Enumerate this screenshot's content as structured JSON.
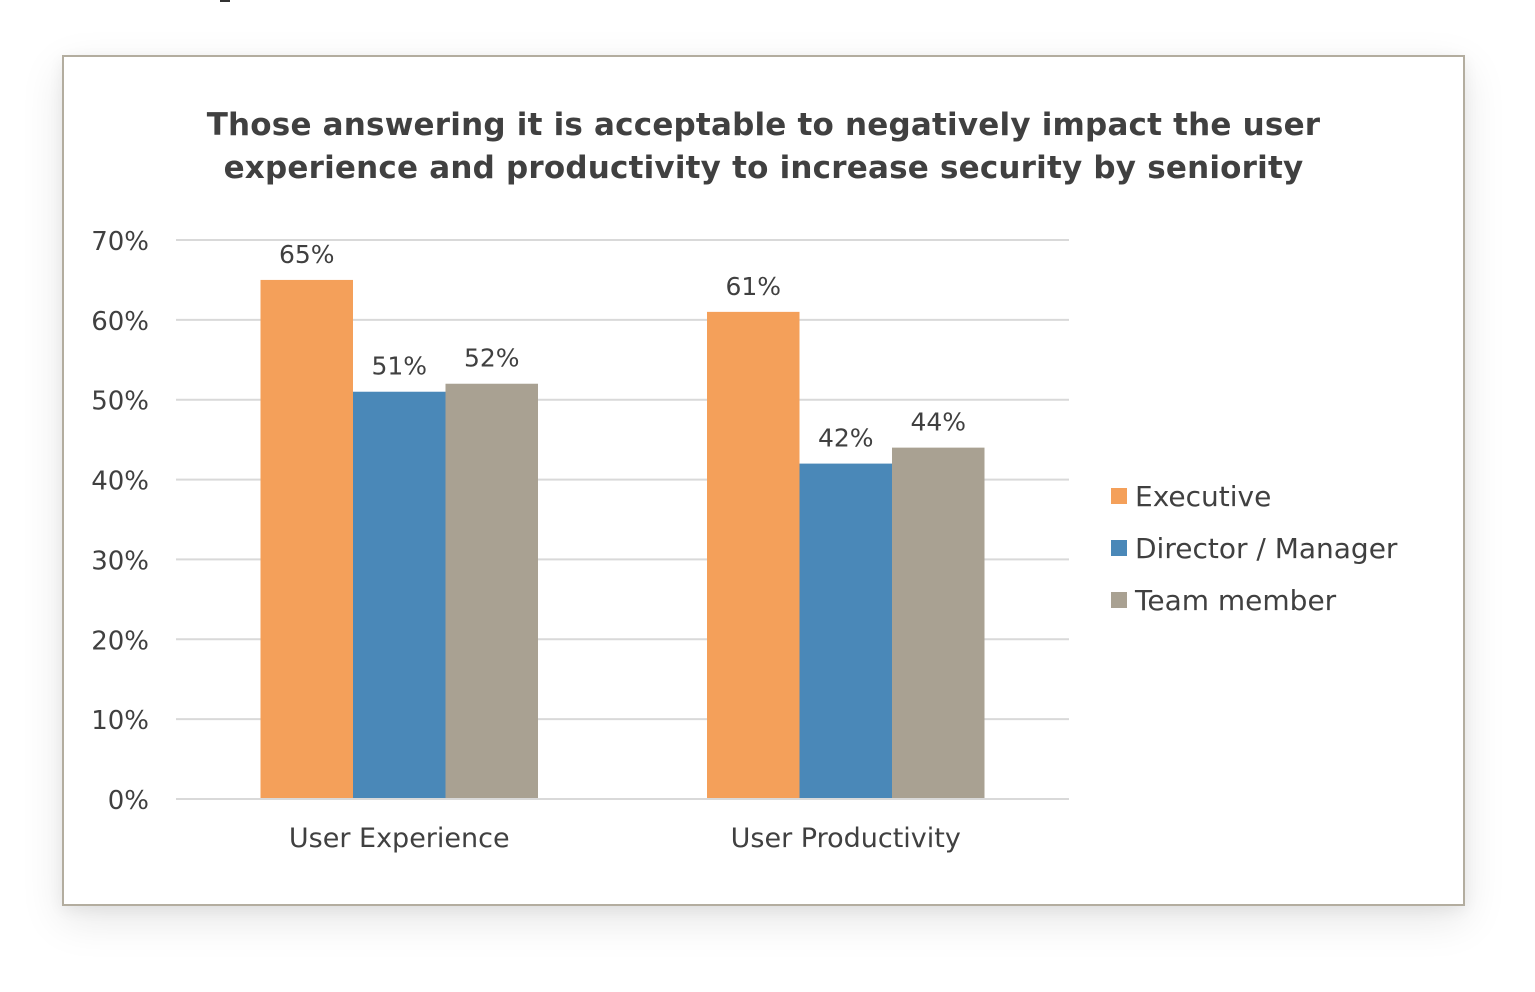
{
  "chart_data": {
    "type": "bar",
    "title": "Those answering it is acceptable to negatively impact the user experience and productivity to increase security by seniority",
    "title_lines": [
      "Those answering it is acceptable to negatively impact the user",
      "experience and productivity to increase security by seniority"
    ],
    "categories": [
      "User Experience",
      "User Productivity"
    ],
    "series": [
      {
        "name": "Executive",
        "color": "#F4A05A",
        "values": [
          65,
          61
        ],
        "labels": [
          "65%",
          "61%"
        ]
      },
      {
        "name": "Director / Manager",
        "color": "#4A88B8",
        "values": [
          51,
          42
        ],
        "labels": [
          "51%",
          "42%"
        ]
      },
      {
        "name": "Team member",
        "color": "#A9A192",
        "values": [
          52,
          44
        ],
        "labels": [
          "52%",
          "44%"
        ]
      }
    ],
    "xlabel": "",
    "ylabel": "",
    "ylim": [
      0,
      70
    ],
    "yticks": [
      0,
      10,
      20,
      30,
      40,
      50,
      60,
      70
    ],
    "ytick_labels": [
      "0%",
      "10%",
      "20%",
      "30%",
      "40%",
      "50%",
      "60%",
      "70%"
    ],
    "grid": true,
    "legend_position": "right"
  }
}
